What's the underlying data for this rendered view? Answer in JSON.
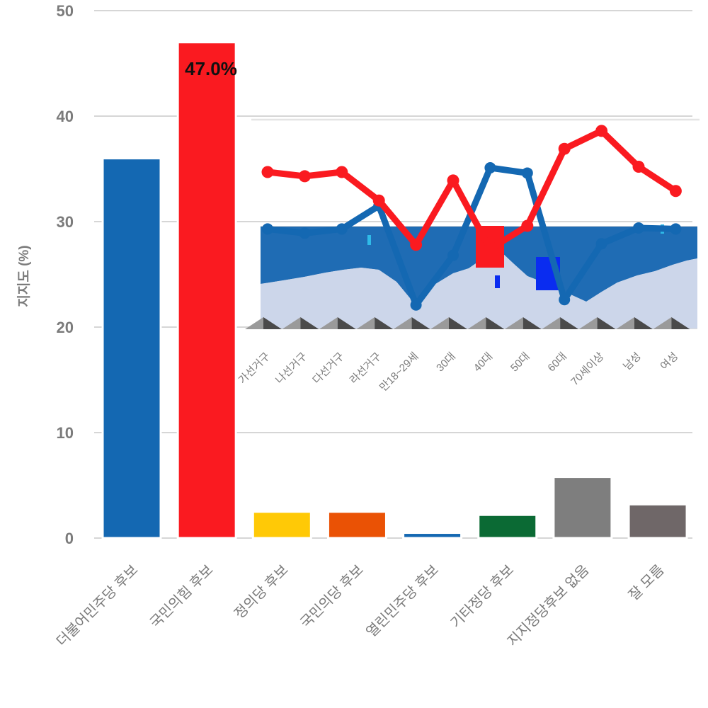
{
  "style": {
    "background": "#ffffff",
    "grid_color": "#d6d6d6",
    "tick_color": "#7b7b7b",
    "annotation_color": "#111111"
  },
  "chart_data": [
    {
      "type": "bar",
      "title": "",
      "xlabel": "",
      "ylabel": "지지도 (%)",
      "ylim": [
        0,
        50
      ],
      "yticks": [
        0,
        10,
        20,
        30,
        40,
        50
      ],
      "grid": true,
      "categories": [
        "더불어민주당 후보",
        "국민의힘 후보",
        "정의당 후보",
        "국민의당 후보",
        "열린민주당 후보",
        "기타정당 후보",
        "지지정당후보 없음",
        "잘 모름"
      ],
      "values": [
        36.0,
        47.0,
        2.5,
        2.5,
        0.5,
        2.2,
        5.8,
        3.2
      ],
      "bar_colors": [
        "#1468b2",
        "#fa1a20",
        "#ffc906",
        "#ea5205",
        "#1468b2",
        "#0b6a34",
        "#7e7e7e",
        "#6f6768"
      ],
      "bar_edge_color": "#ffffff",
      "annotations": [
        {
          "text": "47.0%",
          "category": "국민의힘 후보",
          "color": "#111111"
        }
      ]
    },
    {
      "type": "line",
      "title": "",
      "legend": "none",
      "categories": [
        "가선거구",
        "나선거구",
        "다선거구",
        "라선거구",
        "만18~29세",
        "30대",
        "40대",
        "50대",
        "60대",
        "70세이상",
        "남성",
        "여성"
      ],
      "series": [
        {
          "name": "blue",
          "color": "#1468b2",
          "values": [
            29.3,
            28.9,
            29.3,
            31.5,
            22.1,
            26.8,
            35.1,
            34.6,
            22.6,
            27.9,
            29.4,
            29.3
          ]
        },
        {
          "name": "red",
          "color": "#fa1a20",
          "values": [
            34.7,
            34.3,
            34.7,
            32.0,
            27.8,
            33.9,
            27.4,
            29.6,
            36.9,
            38.6,
            35.2,
            32.9
          ]
        }
      ],
      "decor": {
        "band_bg": "#dcdcdc",
        "area_dark": "#1f6cb4",
        "area_light": "#ccd6ea",
        "tear_dark": "#4a4a4a",
        "tear_light": "#9a9a9a",
        "artifact_blue": "#0a2cf0",
        "artifact_cyan": "#2fbbe8",
        "red_bar_overlay": "#fa1a20",
        "inset_border": "#e4e4e4"
      }
    }
  ]
}
